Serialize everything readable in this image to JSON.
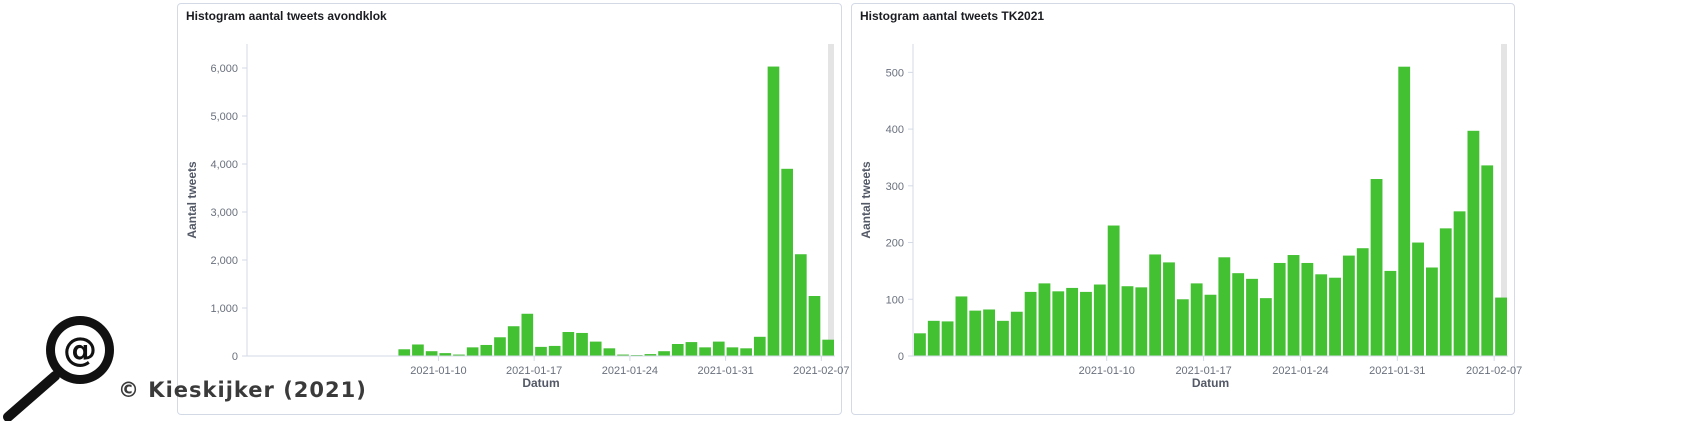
{
  "copyright": "© Kieskijker (2021)",
  "chart_data": [
    {
      "type": "bar",
      "title": "Histogram aantal tweets avondklok",
      "xlabel": "Datum",
      "ylabel": "Aantal tweets",
      "color": "#44c033",
      "x_start": "2020-12-27",
      "x_tick_labels": [
        "2021-01-10",
        "2021-01-17",
        "2021-01-24",
        "2021-01-31",
        "2021-02-07"
      ],
      "y_ticks": [
        0,
        1000,
        2000,
        3000,
        4000,
        5000,
        6000
      ],
      "y_tick_labels": [
        "0",
        "1,000",
        "2,000",
        "3,000",
        "4,000",
        "5,000",
        "6,000"
      ],
      "ylim": [
        0,
        6500
      ],
      "values": [
        0,
        0,
        0,
        0,
        0,
        0,
        0,
        0,
        0,
        0,
        0,
        140,
        240,
        100,
        60,
        30,
        180,
        230,
        390,
        620,
        880,
        190,
        210,
        500,
        480,
        300,
        160,
        30,
        20,
        40,
        100,
        250,
        290,
        180,
        300,
        180,
        160,
        400,
        6030,
        3900,
        2120,
        1250,
        340
      ]
    },
    {
      "type": "bar",
      "title": "Histogram aantal tweets TK2021",
      "xlabel": "Datum",
      "ylabel": "Aantal tweets",
      "color": "#44c033",
      "x_start": "2020-12-27",
      "x_tick_labels": [
        "2021-01-10",
        "2021-01-17",
        "2021-01-24",
        "2021-01-31",
        "2021-02-07"
      ],
      "y_ticks": [
        0,
        100,
        200,
        300,
        400,
        500
      ],
      "y_tick_labels": [
        "0",
        "100",
        "200",
        "300",
        "400",
        "500"
      ],
      "ylim": [
        0,
        550
      ],
      "values": [
        40,
        62,
        61,
        105,
        80,
        82,
        62,
        78,
        113,
        128,
        114,
        120,
        113,
        126,
        230,
        123,
        121,
        179,
        165,
        100,
        128,
        108,
        174,
        146,
        136,
        102,
        164,
        178,
        164,
        144,
        138,
        177,
        190,
        312,
        150,
        510,
        200,
        156,
        225,
        255,
        397,
        336,
        103
      ]
    }
  ]
}
